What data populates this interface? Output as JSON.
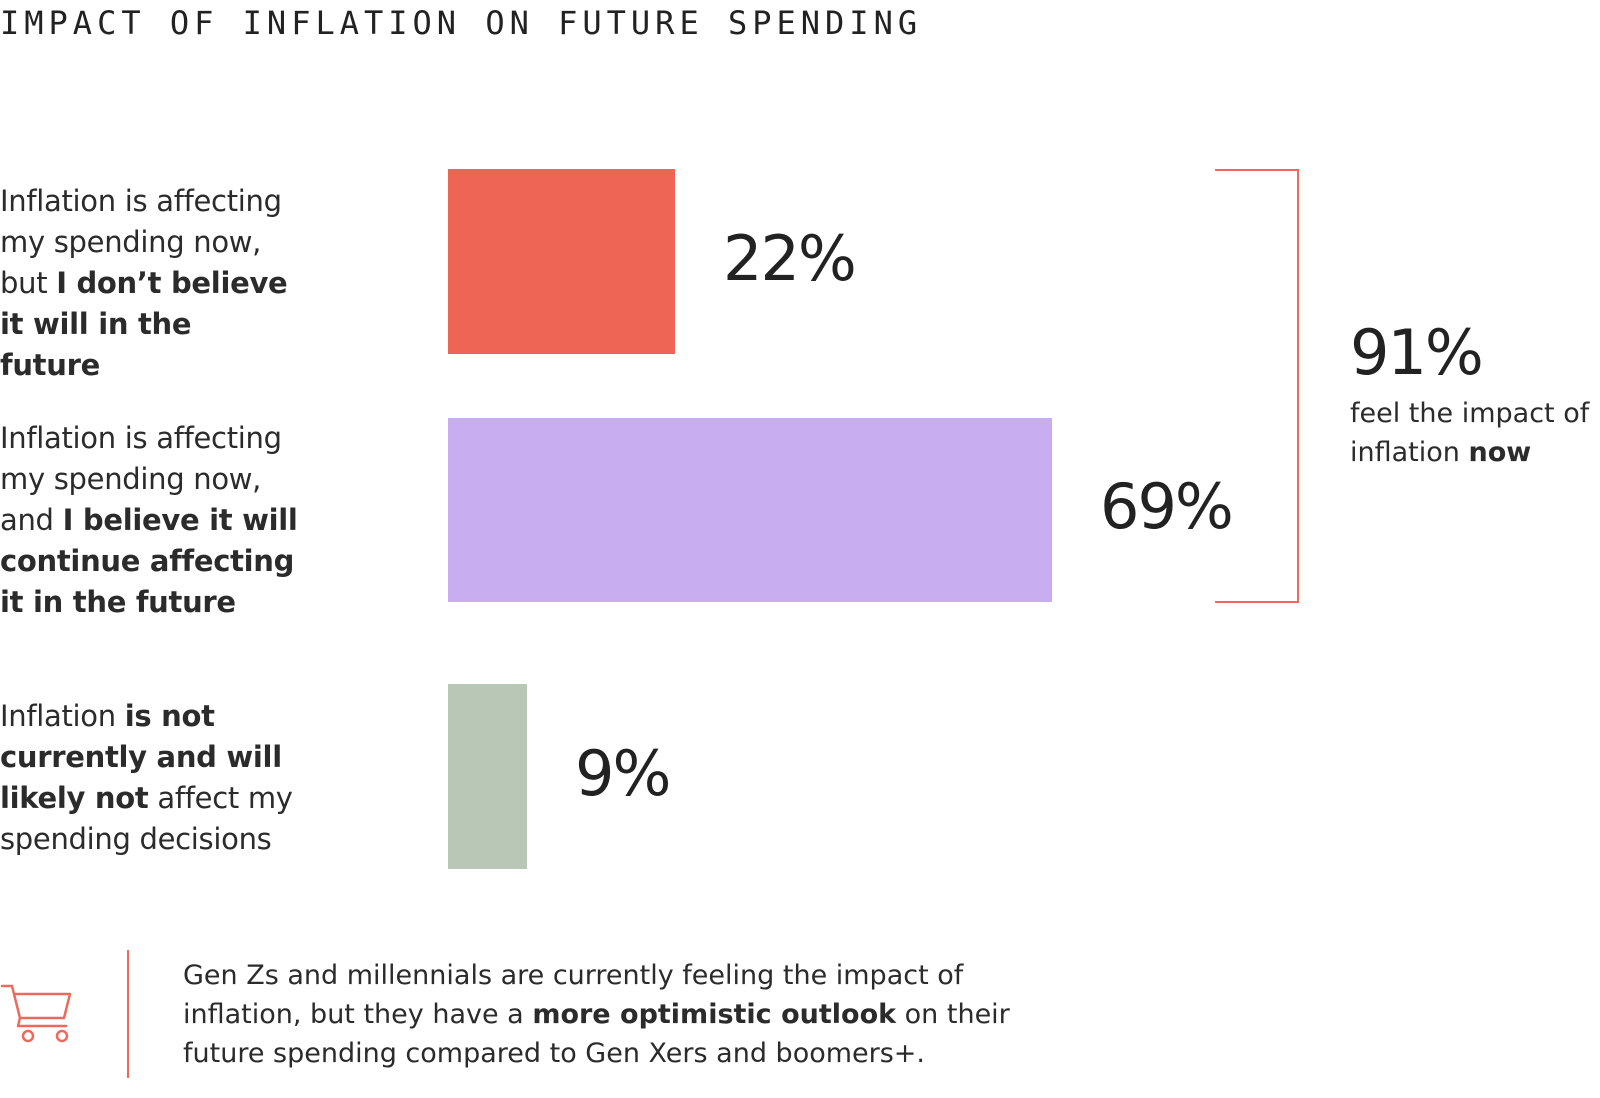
{
  "title": "IMPACT OF INFLATION ON FUTURE SPENDING",
  "chart_data": {
    "type": "bar",
    "orientation": "horizontal",
    "categories": [
      "Inflation is affecting my spending now, but I don’t believe it will in the future",
      "Inflation is affecting my spending now, and I believe it will continue affecting it in the future",
      "Inflation is not currently and will likely not affect my spending decisions"
    ],
    "values": [
      22,
      69,
      9
    ],
    "value_labels": [
      "22%",
      "69%",
      "9%"
    ],
    "colors": [
      "#ef6555",
      "#c8aef0",
      "#b9c8b6"
    ],
    "xlim": [
      0,
      100
    ]
  },
  "labels": [
    [
      {
        "t": "Inflation is affecting my spending now, but ",
        "b": false
      },
      {
        "t": "I don’t believe it will in the future",
        "b": true
      }
    ],
    [
      {
        "t": "Inflation is affecting my spending now, and ",
        "b": false
      },
      {
        "t": "I believe it will continue affecting it in the future",
        "b": true
      }
    ],
    [
      {
        "t": "Inflation ",
        "b": false
      },
      {
        "t": "is not currently and will likely not",
        "b": true
      },
      {
        "t": " affect my spending decisions",
        "b": false
      }
    ]
  ],
  "total": {
    "value": "91%",
    "caption": [
      {
        "t": "feel the impact of inflation ",
        "b": false
      },
      {
        "t": "now",
        "b": true
      }
    ],
    "accent_color": "#ec6a5c"
  },
  "footer": {
    "icon": "shopping-cart-icon",
    "note": [
      {
        "t": "Gen Zs and millennials are currently feeling the impact of inflation, but they have a ",
        "b": false
      },
      {
        "t": "more optimistic outlook",
        "b": true
      },
      {
        "t": " on their future spending compared to Gen Xers and boomers+.",
        "b": false
      }
    ]
  }
}
